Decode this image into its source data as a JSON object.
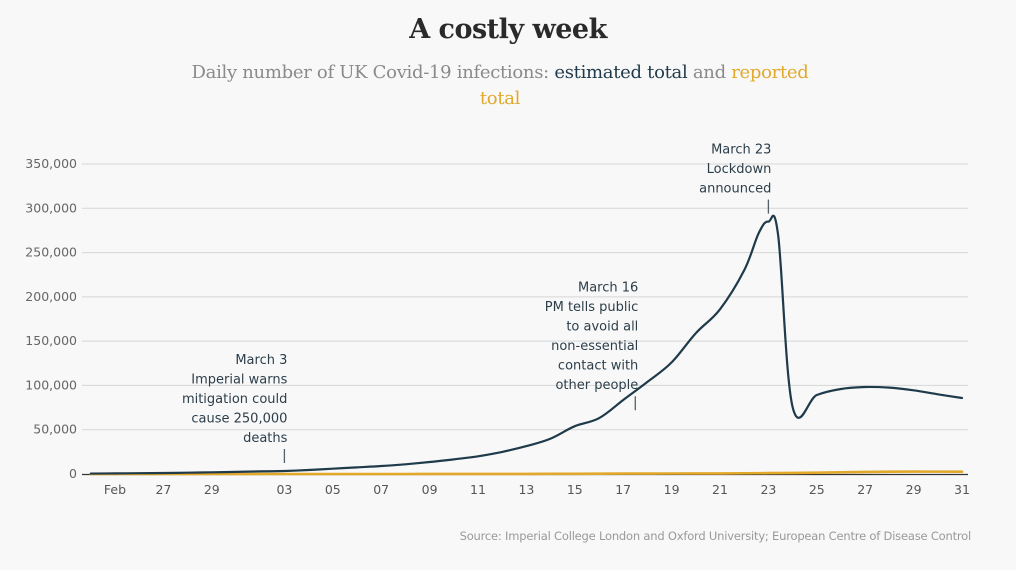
{
  "title": "A costly week",
  "subtitle": {
    "prefix": "Daily number of UK Covid-19 infections: ",
    "estimated_label": "estimated total",
    "middle": " and ",
    "reported_label": "reported total"
  },
  "source": "Source: Imperial College London and Oxford University; European Centre of Disease Control",
  "colors": {
    "estimated": "#1f3a4a",
    "reported": "#e2a82a",
    "grid": "#d6d6d6",
    "axis": "#333333"
  },
  "chart_data": {
    "type": "line",
    "title": "A costly week",
    "subtitle": "Daily number of UK Covid-19 infections: estimated total and reported total",
    "xlabel": "",
    "ylabel": "",
    "ylim": [
      0,
      350000
    ],
    "yticks": [
      0,
      50000,
      100000,
      150000,
      200000,
      250000,
      300000,
      350000
    ],
    "ytick_labels": [
      "0",
      "50,000",
      "100,000",
      "150,000",
      "200,000",
      "250,000",
      "300,000",
      "350,000"
    ],
    "xlim_days": [
      -1.5,
      35.3
    ],
    "xticks": [
      {
        "day": 0,
        "label": "Feb"
      },
      {
        "day": 2,
        "label": "27"
      },
      {
        "day": 4,
        "label": "29"
      },
      {
        "day": 7,
        "label": "03"
      },
      {
        "day": 9,
        "label": "05"
      },
      {
        "day": 11,
        "label": "07"
      },
      {
        "day": 13,
        "label": "09"
      },
      {
        "day": 15,
        "label": "11"
      },
      {
        "day": 17,
        "label": "13"
      },
      {
        "day": 19,
        "label": "15"
      },
      {
        "day": 21,
        "label": "17"
      },
      {
        "day": 23,
        "label": "19"
      },
      {
        "day": 25,
        "label": "21"
      },
      {
        "day": 27,
        "label": "23"
      },
      {
        "day": 29,
        "label": "25"
      },
      {
        "day": 31,
        "label": "27"
      },
      {
        "day": 33,
        "label": "29"
      },
      {
        "day": 35,
        "label": "31"
      }
    ],
    "x_note": "day 0 = 25 Feb 2020, day 35 = 31 Mar 2020",
    "grid": true,
    "legend": "in-subtitle",
    "series": [
      {
        "name": "estimated total",
        "color": "#1f3a4a",
        "x": [
          -1,
          0,
          1,
          2,
          3,
          4,
          5,
          6,
          7,
          8,
          9,
          10,
          11,
          12,
          13,
          14,
          15,
          16,
          17,
          18,
          19,
          20,
          21,
          22,
          23,
          24,
          25,
          26,
          26.6,
          27,
          27.4,
          28,
          29,
          30,
          31,
          32,
          33,
          34,
          35
        ],
        "values": [
          500,
          700,
          900,
          1100,
          1500,
          1900,
          2400,
          2900,
          3400,
          4500,
          6000,
          7500,
          9000,
          11000,
          13500,
          16500,
          20000,
          25000,
          31500,
          40000,
          54000,
          63000,
          83500,
          104000,
          126000,
          159000,
          186000,
          230000,
          272000,
          285000,
          270000,
          75600,
          89200,
          96000,
          98200,
          97500,
          94500,
          90000,
          85800
        ]
      },
      {
        "name": "reported total",
        "color": "#e2a82a",
        "x": [
          -1,
          0,
          2,
          4,
          7,
          9,
          11,
          13,
          15,
          17,
          19,
          21,
          23,
          25,
          27,
          29,
          31,
          33,
          35
        ],
        "values": [
          0,
          0,
          0,
          0,
          10,
          20,
          40,
          60,
          100,
          150,
          250,
          400,
          600,
          700,
          1000,
          1500,
          2400,
          2700,
          2600
        ]
      }
    ],
    "annotations": [
      {
        "day": 7,
        "value": 3400,
        "lines": [
          "March 3",
          "Imperial warns",
          "mitigation could",
          "cause 250,000",
          "deaths"
        ]
      },
      {
        "day": 21.5,
        "value": 63000,
        "lines": [
          "March 16",
          "PM tells public",
          "to avoid all",
          "non-essential",
          "contact with",
          "other people"
        ]
      },
      {
        "day": 27,
        "value": 285000,
        "lines": [
          "March 23",
          "Lockdown",
          "announced"
        ]
      }
    ]
  }
}
